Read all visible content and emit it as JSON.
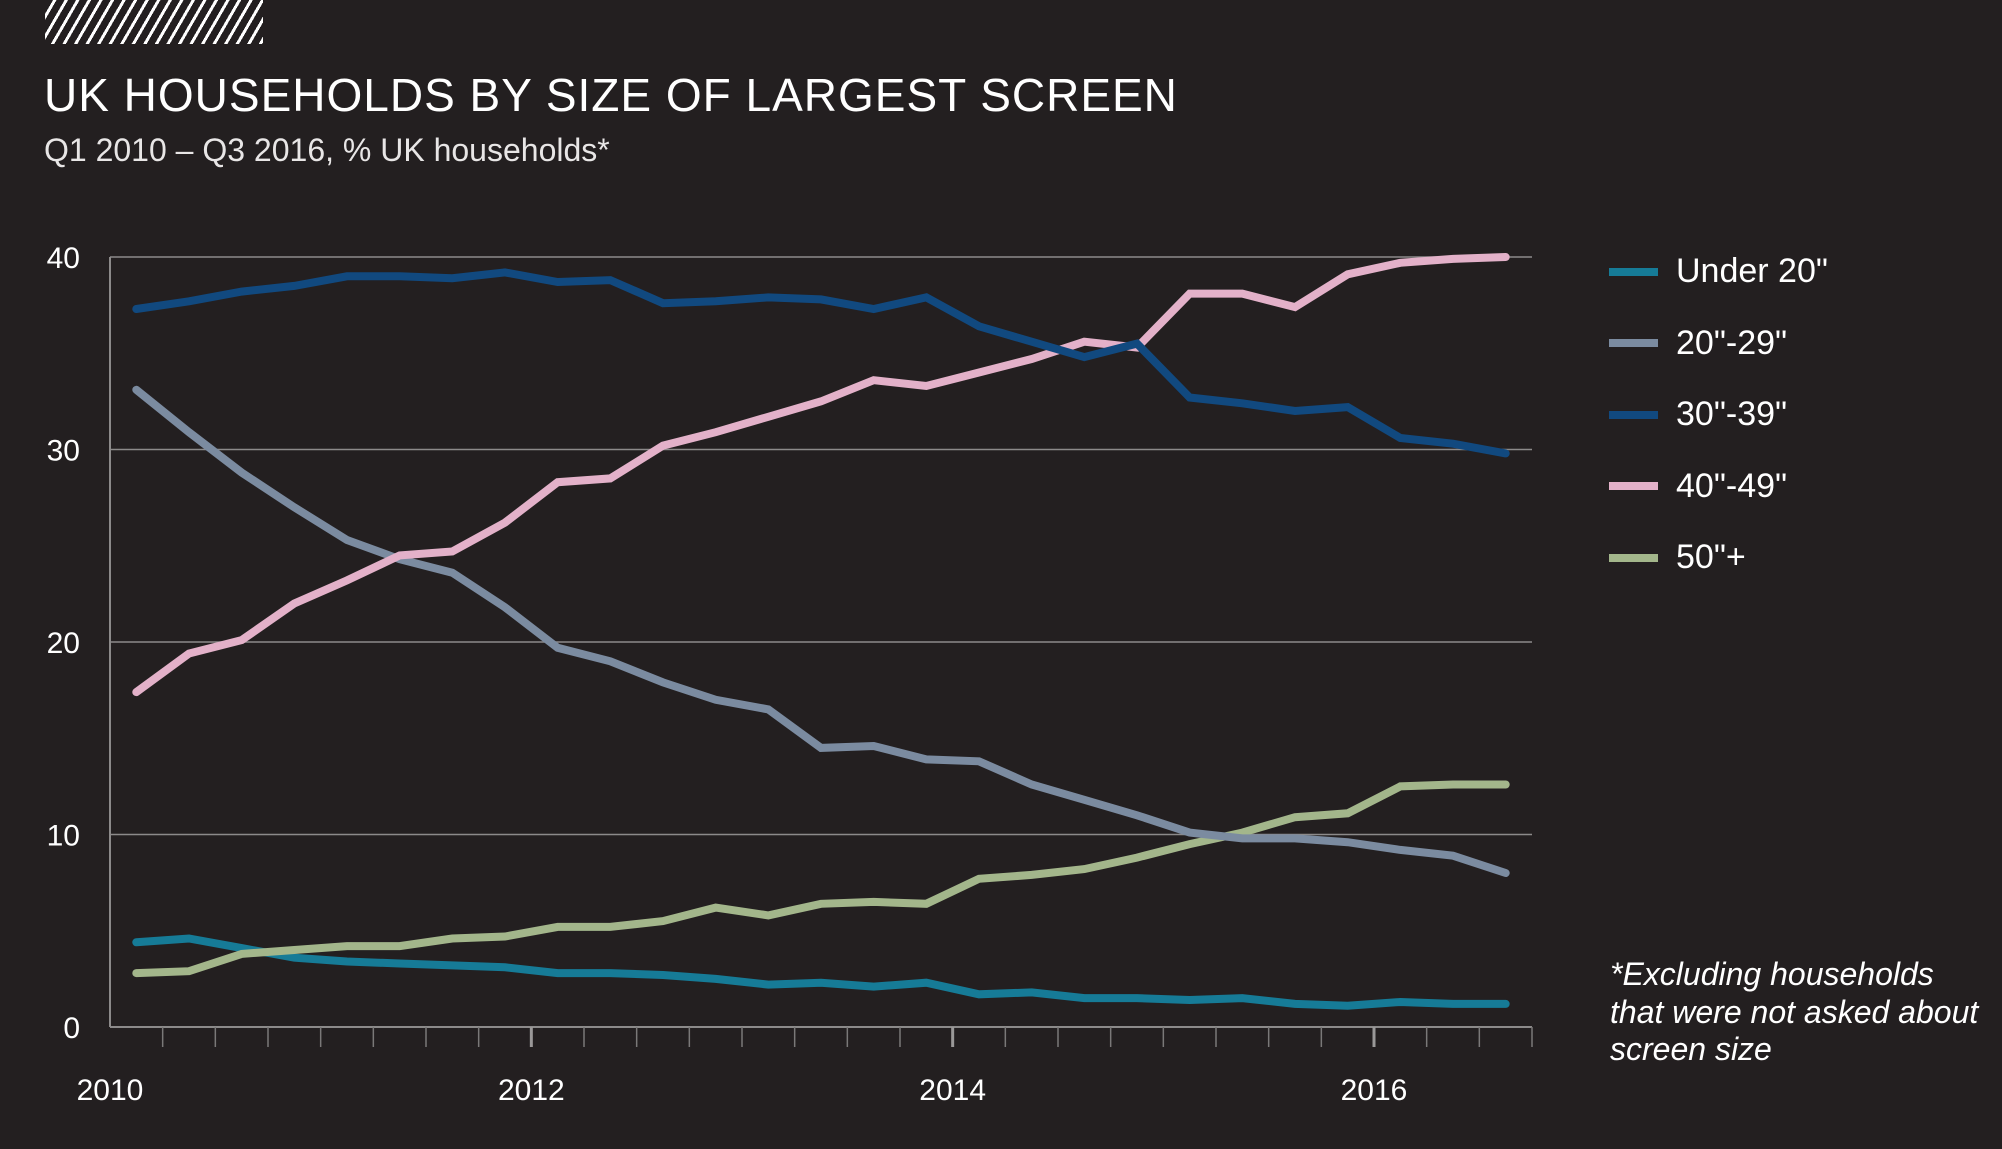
{
  "header": {
    "logo_icon": "hatch-pattern-icon",
    "title": "UK HOUSEHOLDS BY SIZE OF LARGEST SCREEN",
    "subtitle": "Q1 2010 – Q3 2016, % UK households*"
  },
  "footnote": "*Excluding households that were not asked about screen size",
  "chart_data": {
    "type": "line",
    "title": "UK HOUSEHOLDS BY SIZE OF LARGEST SCREEN",
    "subtitle": "Q1 2010 – Q3 2016, % UK households*",
    "xlabel": "",
    "ylabel": "% UK households",
    "x": [
      "Q1 2010",
      "Q2 2010",
      "Q3 2010",
      "Q4 2010",
      "Q1 2011",
      "Q2 2011",
      "Q3 2011",
      "Q4 2011",
      "Q1 2012",
      "Q2 2012",
      "Q3 2012",
      "Q4 2012",
      "Q1 2013",
      "Q2 2013",
      "Q3 2013",
      "Q4 2013",
      "Q1 2014",
      "Q2 2014",
      "Q3 2014",
      "Q4 2014",
      "Q1 2015",
      "Q2 2015",
      "Q3 2015",
      "Q4 2015",
      "Q1 2016",
      "Q2 2016",
      "Q3 2016"
    ],
    "x_range": [
      "2010",
      "2016 Q4"
    ],
    "x_ticks": [
      "2010",
      "2012",
      "2014",
      "2016"
    ],
    "x_minor_ticks": "quarterly",
    "ylim": [
      0,
      40
    ],
    "y_ticks": [
      0,
      10,
      20,
      30,
      40
    ],
    "grid": true,
    "legend_position": "right",
    "series": [
      {
        "name": "Under 20\"",
        "color": "#167b97",
        "values": [
          4.4,
          4.6,
          4.1,
          3.6,
          3.4,
          3.3,
          3.2,
          3.1,
          2.8,
          2.8,
          2.7,
          2.5,
          2.2,
          2.3,
          2.1,
          2.3,
          1.7,
          1.8,
          1.5,
          1.5,
          1.4,
          1.5,
          1.2,
          1.1,
          1.3,
          1.2,
          1.2
        ]
      },
      {
        "name": "20\"-29\"",
        "color": "#7b8ba0",
        "values": [
          33.1,
          30.9,
          28.8,
          27.0,
          25.3,
          24.3,
          23.6,
          21.8,
          19.7,
          19.0,
          17.9,
          17.0,
          16.5,
          14.5,
          14.6,
          13.9,
          13.8,
          12.6,
          11.8,
          11.0,
          10.1,
          9.8,
          9.8,
          9.6,
          9.2,
          8.9,
          8.0
        ]
      },
      {
        "name": "30\"-39\"",
        "color": "#11497f",
        "values": [
          37.3,
          37.7,
          38.2,
          38.5,
          39.0,
          39.0,
          38.9,
          39.2,
          38.7,
          38.8,
          37.6,
          37.7,
          37.9,
          37.8,
          37.3,
          37.9,
          36.4,
          35.6,
          34.8,
          35.5,
          32.7,
          32.4,
          32.0,
          32.2,
          30.6,
          30.3,
          29.8
        ]
      },
      {
        "name": "40\"-49\"",
        "color": "#e3b1c9",
        "values": [
          17.4,
          19.4,
          20.1,
          22.0,
          23.2,
          24.5,
          24.7,
          26.2,
          28.3,
          28.5,
          30.2,
          30.9,
          31.7,
          32.5,
          33.6,
          33.3,
          34.0,
          34.7,
          35.6,
          35.3,
          38.1,
          38.1,
          37.4,
          39.1,
          39.7,
          39.9,
          40.0
        ]
      },
      {
        "name": "50\"+",
        "color": "#a3b68b",
        "values": [
          2.8,
          2.9,
          3.8,
          4.0,
          4.2,
          4.2,
          4.6,
          4.7,
          5.2,
          5.2,
          5.5,
          6.2,
          5.8,
          6.4,
          6.5,
          6.4,
          7.7,
          7.9,
          8.2,
          8.8,
          9.5,
          10.1,
          10.9,
          11.1,
          12.5,
          12.6,
          12.6
        ]
      }
    ]
  }
}
